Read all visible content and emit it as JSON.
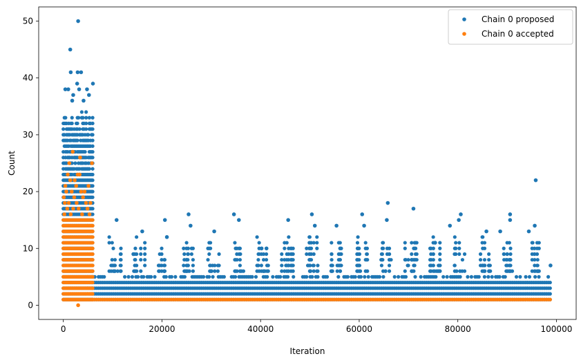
{
  "chart_data": {
    "type": "scatter",
    "xlabel": "Iteration",
    "ylabel": "Count",
    "xlim": [
      -5000,
      104000
    ],
    "ylim": [
      -2.5,
      52.5
    ],
    "xticks": [
      0,
      20000,
      40000,
      60000,
      80000,
      100000
    ],
    "yticks": [
      0,
      10,
      20,
      30,
      40,
      50
    ],
    "legend_position": "top-right",
    "grid": false,
    "series": [
      {
        "name": "Chain 0 proposed",
        "color": "#1f77b4",
        "bands": [
          {
            "x_start": 0,
            "x_end": 6000,
            "y_min": 1,
            "y_max": 35
          },
          {
            "x_start": 6000,
            "x_end": 99000,
            "y_min": 1,
            "y_max": 5
          }
        ],
        "points": [
          {
            "x": 3000,
            "y": 50
          },
          {
            "x": 1400,
            "y": 45
          },
          {
            "x": 1500,
            "y": 41
          },
          {
            "x": 2900,
            "y": 41
          },
          {
            "x": 3600,
            "y": 41
          },
          {
            "x": 2800,
            "y": 39
          },
          {
            "x": 6000,
            "y": 39
          },
          {
            "x": 400,
            "y": 38
          },
          {
            "x": 1000,
            "y": 38
          },
          {
            "x": 3200,
            "y": 38
          },
          {
            "x": 4800,
            "y": 38
          },
          {
            "x": 2000,
            "y": 37
          },
          {
            "x": 5200,
            "y": 37
          },
          {
            "x": 1800,
            "y": 36
          },
          {
            "x": 4100,
            "y": 36
          },
          {
            "x": 10800,
            "y": 15
          },
          {
            "x": 14200,
            "y": 9
          },
          {
            "x": 16000,
            "y": 13
          },
          {
            "x": 20600,
            "y": 15
          },
          {
            "x": 21000,
            "y": 12
          },
          {
            "x": 25400,
            "y": 16
          },
          {
            "x": 25800,
            "y": 14
          },
          {
            "x": 30600,
            "y": 13
          },
          {
            "x": 34600,
            "y": 16
          },
          {
            "x": 35600,
            "y": 15
          },
          {
            "x": 40200,
            "y": 10
          },
          {
            "x": 41200,
            "y": 10
          },
          {
            "x": 45600,
            "y": 15
          },
          {
            "x": 50400,
            "y": 16
          },
          {
            "x": 51000,
            "y": 14
          },
          {
            "x": 55400,
            "y": 14
          },
          {
            "x": 60600,
            "y": 16
          },
          {
            "x": 61000,
            "y": 14
          },
          {
            "x": 65800,
            "y": 18
          },
          {
            "x": 65600,
            "y": 15
          },
          {
            "x": 71000,
            "y": 17
          },
          {
            "x": 75400,
            "y": 11
          },
          {
            "x": 78400,
            "y": 14
          },
          {
            "x": 80600,
            "y": 16
          },
          {
            "x": 80200,
            "y": 15
          },
          {
            "x": 85800,
            "y": 13
          },
          {
            "x": 88600,
            "y": 13
          },
          {
            "x": 90600,
            "y": 16
          },
          {
            "x": 90600,
            "y": 15
          },
          {
            "x": 94400,
            "y": 13
          },
          {
            "x": 95800,
            "y": 22
          },
          {
            "x": 95600,
            "y": 14
          },
          {
            "x": 98800,
            "y": 7
          }
        ]
      },
      {
        "name": "Chain 0 accepted",
        "color": "#ff7f0e",
        "bands": [
          {
            "x_start": 0,
            "x_end": 6000,
            "y_min": 1,
            "y_max": 15
          },
          {
            "x_start": 6000,
            "x_end": 99000,
            "y_min": 1,
            "y_max": 1
          }
        ],
        "points": [
          {
            "x": 3000,
            "y": 0
          },
          {
            "x": 1900,
            "y": 27
          },
          {
            "x": 3400,
            "y": 26
          },
          {
            "x": 1200,
            "y": 25
          },
          {
            "x": 5800,
            "y": 25
          },
          {
            "x": 900,
            "y": 23
          },
          {
            "x": 2900,
            "y": 23
          },
          {
            "x": 3300,
            "y": 23
          },
          {
            "x": 2300,
            "y": 22
          },
          {
            "x": 1400,
            "y": 22
          },
          {
            "x": 400,
            "y": 21
          },
          {
            "x": 2600,
            "y": 21
          },
          {
            "x": 5100,
            "y": 21
          },
          {
            "x": 600,
            "y": 20
          },
          {
            "x": 1700,
            "y": 20
          },
          {
            "x": 3600,
            "y": 20
          },
          {
            "x": 4300,
            "y": 20
          },
          {
            "x": 100,
            "y": 19
          },
          {
            "x": 2200,
            "y": 19
          },
          {
            "x": 4000,
            "y": 19
          },
          {
            "x": 300,
            "y": 18
          },
          {
            "x": 1100,
            "y": 18
          },
          {
            "x": 2700,
            "y": 18
          },
          {
            "x": 4600,
            "y": 18
          },
          {
            "x": 5500,
            "y": 18
          },
          {
            "x": 800,
            "y": 17
          },
          {
            "x": 2000,
            "y": 17
          },
          {
            "x": 3100,
            "y": 17
          },
          {
            "x": 4900,
            "y": 17
          },
          {
            "x": 200,
            "y": 16
          },
          {
            "x": 1500,
            "y": 16
          },
          {
            "x": 3800,
            "y": 16
          },
          {
            "x": 5300,
            "y": 16
          }
        ]
      }
    ]
  }
}
